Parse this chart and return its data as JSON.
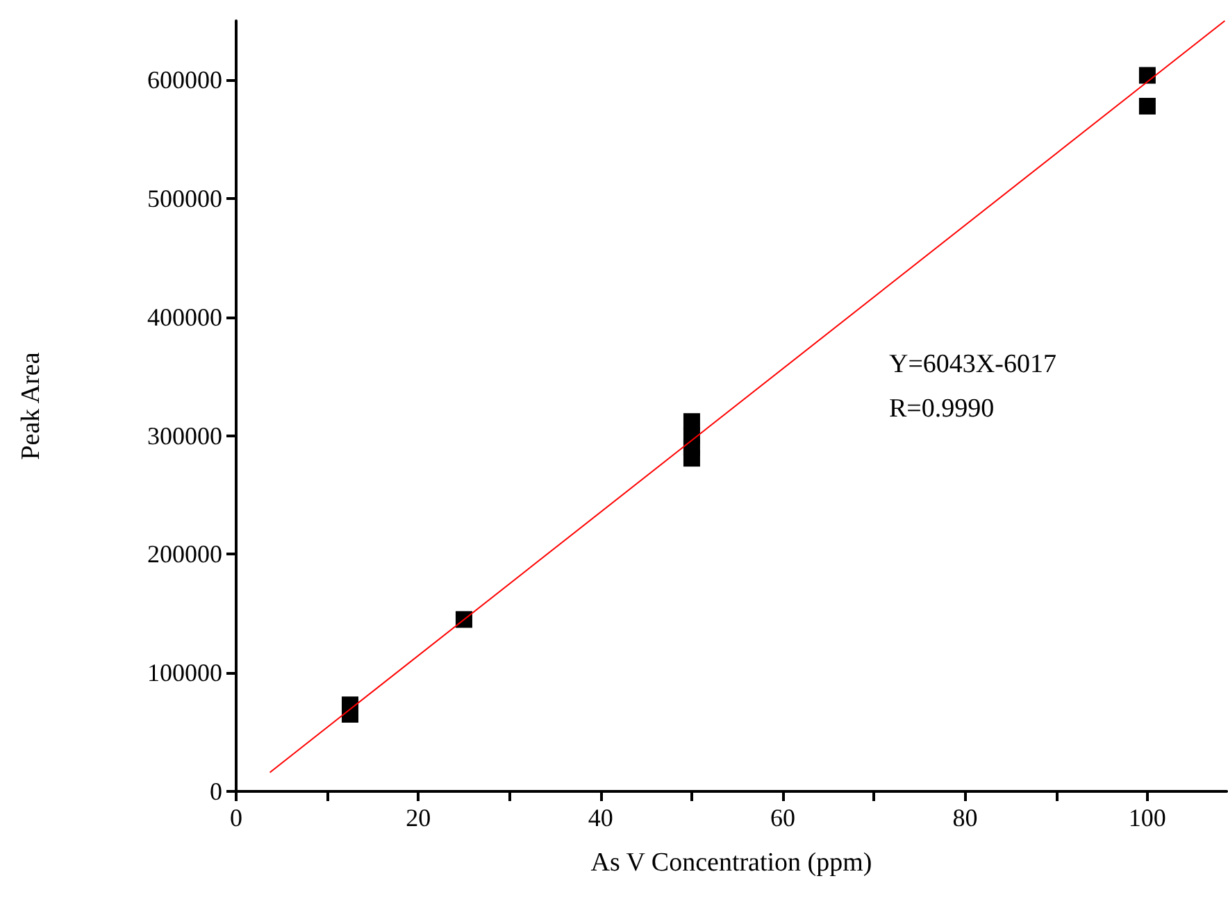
{
  "chart_data": {
    "type": "scatter",
    "xlabel": "As V Concentration (ppm)",
    "ylabel": "Peak Area",
    "annotations": [
      "Y=6043X-6017",
      "R=0.9990"
    ],
    "series": [
      {
        "color": "#000000",
        "marker": "square",
        "x": [
          12.5,
          12.5,
          25,
          50,
          50,
          50,
          50,
          100,
          100
        ],
        "values": [
          65000,
          73000,
          145000,
          312000,
          300000,
          290000,
          281000,
          604000,
          578000
        ]
      },
      {
        "type": "line",
        "color": "#ff0000",
        "marker": "none",
        "x": [
          3.7,
          108.5
        ],
        "values": [
          16000,
          650000
        ]
      }
    ],
    "xlim": [
      0,
      108.7
    ],
    "ylim": [
      0,
      650000
    ],
    "xticks": [
      0,
      {
        "value": 10,
        "label": null
      },
      20,
      {
        "value": 30,
        "label": null
      },
      40,
      {
        "value": 50,
        "label": null
      },
      60,
      {
        "value": 70,
        "label": null
      },
      80,
      {
        "value": 90,
        "label": null
      },
      100
    ],
    "yticks": [
      0,
      100000,
      200000,
      300000,
      400000,
      500000,
      600000
    ],
    "grid": false
  }
}
